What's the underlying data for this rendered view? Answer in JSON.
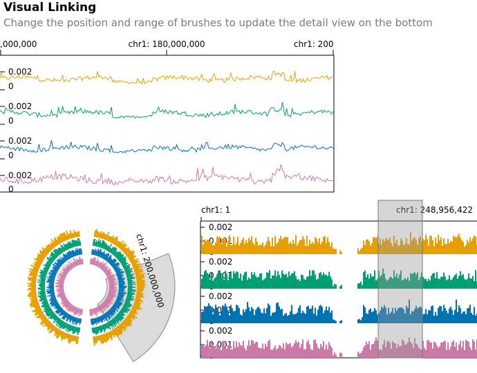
{
  "header": {
    "title": "Visual Linking",
    "subtitle": "Change the position and range of brushes to update the detail view on the bottom"
  },
  "overview": {
    "axis_labels": [
      ",000,000",
      "chr1: 180,000,000",
      "chr1: 200"
    ],
    "y_max_label": "0.002",
    "y_min_label": "0",
    "tracks": [
      {
        "color": "#E69F00"
      },
      {
        "color": "#009E73"
      },
      {
        "color": "#0072B2"
      },
      {
        "color": "#CC79A7"
      }
    ]
  },
  "circular": {
    "brush_label": "chr1: 200,000,000"
  },
  "detail": {
    "axis_start_label": "chr1: 1",
    "axis_end_label": "chr1: 248,956,422",
    "y_max_label": "0.002",
    "y_mid_label": "0.001",
    "y_min_label": "0"
  },
  "colors": {
    "orange": "#E69F00",
    "green": "#009E73",
    "blue": "#0072B2",
    "pink": "#CC79A7",
    "brush": "#999999"
  }
}
